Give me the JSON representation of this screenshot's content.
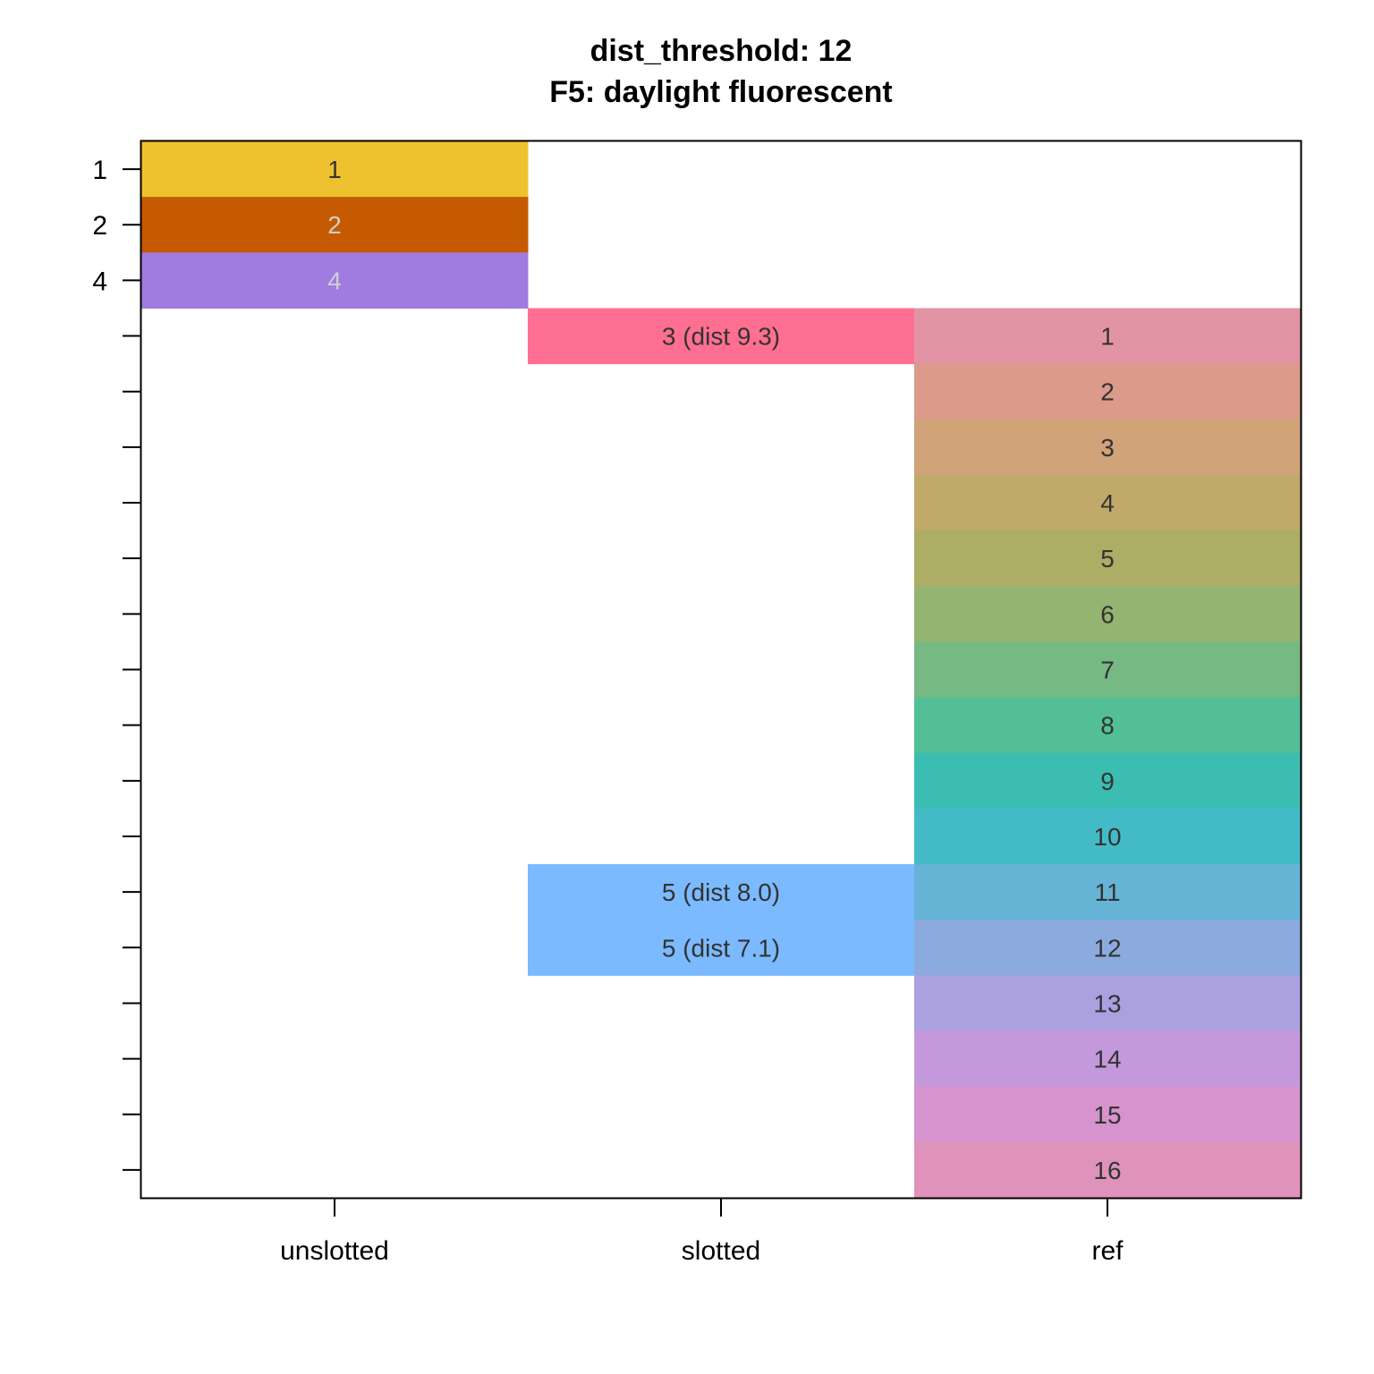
{
  "chart_data": {
    "type": "heatmap",
    "title": "dist_threshold: 12",
    "subtitle": "F5: daylight fluorescent",
    "columns": [
      "unslotted",
      "slotted",
      "ref"
    ],
    "row_count": 19,
    "y_tick_labels": [
      "1",
      "2",
      "4",
      "",
      "",
      "",
      "",
      "",
      "",
      "",
      "",
      "",
      "",
      "",
      "",
      "",
      "",
      "",
      ""
    ],
    "cells": [
      {
        "column": "unslotted",
        "row": 1,
        "label": "1",
        "color": "#EEC22F",
        "text_color": "#333333"
      },
      {
        "column": "unslotted",
        "row": 2,
        "label": "2",
        "color": "#C55A00",
        "text_color": "#D0D0D0"
      },
      {
        "column": "unslotted",
        "row": 3,
        "label": "4",
        "color": "#A07BE0",
        "text_color": "#D0D0D0"
      },
      {
        "column": "slotted",
        "row": 4,
        "label": "3 (dist 9.3)",
        "color": "#FF6F91",
        "text_color": "#333333"
      },
      {
        "column": "slotted",
        "row": 14,
        "label": "5 (dist 8.0)",
        "color": "#7BBAFE",
        "text_color": "#333333"
      },
      {
        "column": "slotted",
        "row": 15,
        "label": "5 (dist 7.1)",
        "color": "#7BBAFE",
        "text_color": "#333333"
      },
      {
        "column": "ref",
        "row": 4,
        "label": "1",
        "color": "#E294A5",
        "text_color": "#333333"
      },
      {
        "column": "ref",
        "row": 5,
        "label": "2",
        "color": "#DC9A8A",
        "text_color": "#333333"
      },
      {
        "column": "ref",
        "row": 6,
        "label": "3",
        "color": "#D0A379",
        "text_color": "#333333"
      },
      {
        "column": "ref",
        "row": 7,
        "label": "4",
        "color": "#C1A96A",
        "text_color": "#333333"
      },
      {
        "column": "ref",
        "row": 8,
        "label": "5",
        "color": "#ADAE66",
        "text_color": "#333333"
      },
      {
        "column": "ref",
        "row": 9,
        "label": "6",
        "color": "#94B471",
        "text_color": "#333333"
      },
      {
        "column": "ref",
        "row": 10,
        "label": "7",
        "color": "#76B983",
        "text_color": "#333333"
      },
      {
        "column": "ref",
        "row": 11,
        "label": "8",
        "color": "#52BF97",
        "text_color": "#333333"
      },
      {
        "column": "ref",
        "row": 12,
        "label": "9",
        "color": "#3BBDB1",
        "text_color": "#333333"
      },
      {
        "column": "ref",
        "row": 13,
        "label": "10",
        "color": "#43BBC7",
        "text_color": "#333333"
      },
      {
        "column": "ref",
        "row": 14,
        "label": "11",
        "color": "#66B4D5",
        "text_color": "#333333"
      },
      {
        "column": "ref",
        "row": 15,
        "label": "12",
        "color": "#8BABDE",
        "text_color": "#333333"
      },
      {
        "column": "ref",
        "row": 16,
        "label": "13",
        "color": "#ABA1E1",
        "text_color": "#333333"
      },
      {
        "column": "ref",
        "row": 17,
        "label": "14",
        "color": "#C499DB",
        "text_color": "#333333"
      },
      {
        "column": "ref",
        "row": 18,
        "label": "15",
        "color": "#D693CD",
        "text_color": "#333333"
      },
      {
        "column": "ref",
        "row": 19,
        "label": "16",
        "color": "#E093BA",
        "text_color": "#333333"
      }
    ]
  }
}
